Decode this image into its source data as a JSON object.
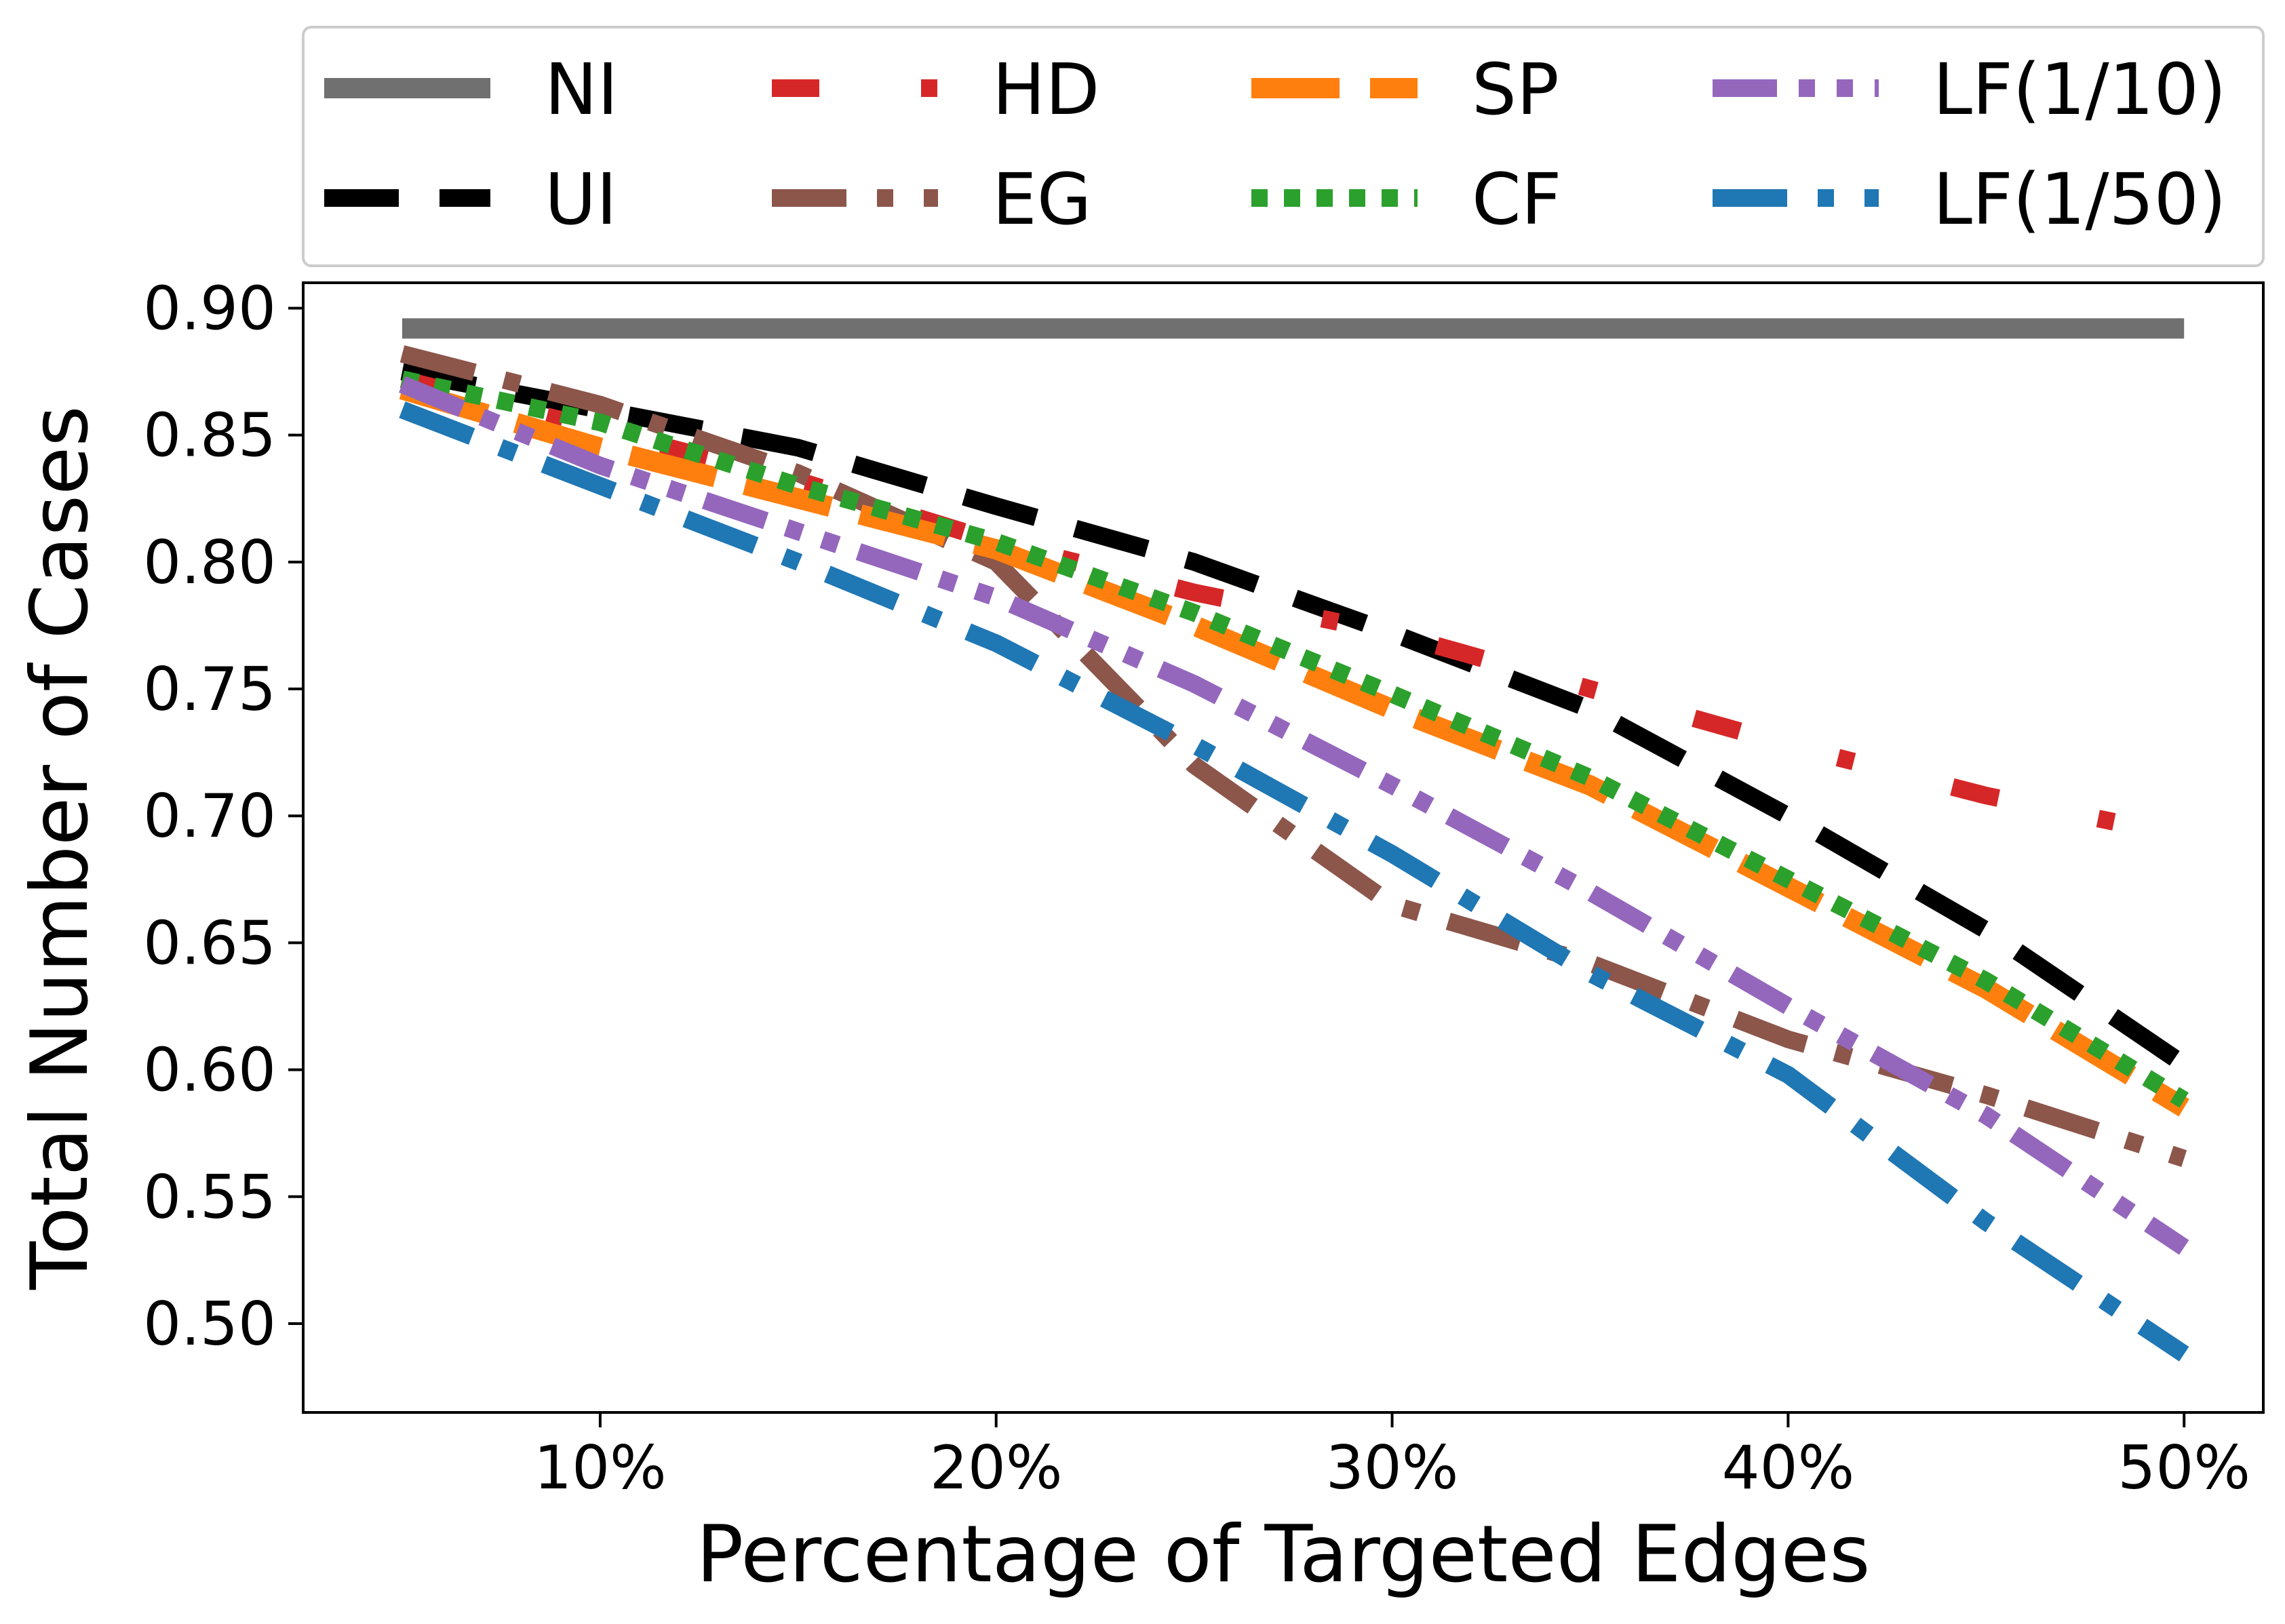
{
  "chart_data": {
    "type": "line",
    "xlabel": "Percentage of Targeted Edges",
    "ylabel": "Total Number of Cases",
    "xlim": [
      0.025,
      0.52
    ],
    "ylim": [
      0.465,
      0.91
    ],
    "x_ticks": [
      0.1,
      0.2,
      0.3,
      0.4,
      0.5
    ],
    "x_tick_labels": [
      "10%",
      "20%",
      "30%",
      "40%",
      "50%"
    ],
    "y_ticks": [
      0.5,
      0.55,
      0.6,
      0.65,
      0.7,
      0.75,
      0.8,
      0.85,
      0.9
    ],
    "y_tick_labels": [
      "0.50",
      "0.55",
      "0.60",
      "0.65",
      "0.70",
      "0.75",
      "0.80",
      "0.85",
      "0.90"
    ],
    "legend_position": "top, above plot, 4 columns",
    "x": [
      0.05,
      0.1,
      0.15,
      0.2,
      0.25,
      0.3,
      0.35,
      0.4,
      0.45,
      0.5
    ],
    "series": [
      {
        "name": "NI",
        "color": "#707070",
        "style": "solid",
        "values": [
          0.892,
          0.892,
          0.892,
          0.892,
          0.892,
          0.892,
          0.892,
          0.892,
          0.892,
          0.892
        ]
      },
      {
        "name": "UI",
        "color": "#000000",
        "style": "dashed",
        "values": [
          0.875,
          0.86,
          0.845,
          0.822,
          0.8,
          0.772,
          0.742,
          0.7,
          0.655,
          0.602
        ]
      },
      {
        "name": "HD",
        "color": "#d62728",
        "style": "dash-dot-sparse",
        "values": [
          0.872,
          0.852,
          0.832,
          0.808,
          0.788,
          0.772,
          0.75,
          0.728,
          0.708,
          0.692
        ]
      },
      {
        "name": "EG",
        "color": "#8c564b",
        "style": "dashdot",
        "values": [
          0.882,
          0.862,
          0.835,
          0.8,
          0.72,
          0.665,
          0.642,
          0.612,
          0.59,
          0.565
        ]
      },
      {
        "name": "SP",
        "color": "#ff7f0e",
        "style": "long-dash",
        "values": [
          0.868,
          0.845,
          0.825,
          0.805,
          0.775,
          0.742,
          0.712,
          0.672,
          0.632,
          0.585
        ]
      },
      {
        "name": "CF",
        "color": "#2ca02c",
        "style": "dotted",
        "values": [
          0.872,
          0.855,
          0.83,
          0.808,
          0.78,
          0.748,
          0.715,
          0.675,
          0.635,
          0.588
        ]
      },
      {
        "name": "LF(1/10)",
        "color": "#9467bd",
        "style": "dash-dot-dot",
        "values": [
          0.87,
          0.838,
          0.812,
          0.786,
          0.752,
          0.712,
          0.67,
          0.625,
          0.582,
          0.53
        ]
      },
      {
        "name": "LF(1/50)",
        "color": "#1f77b4",
        "style": "dashdot",
        "values": [
          0.86,
          0.83,
          0.8,
          0.768,
          0.728,
          0.685,
          0.638,
          0.598,
          0.54,
          0.488
        ]
      }
    ]
  }
}
